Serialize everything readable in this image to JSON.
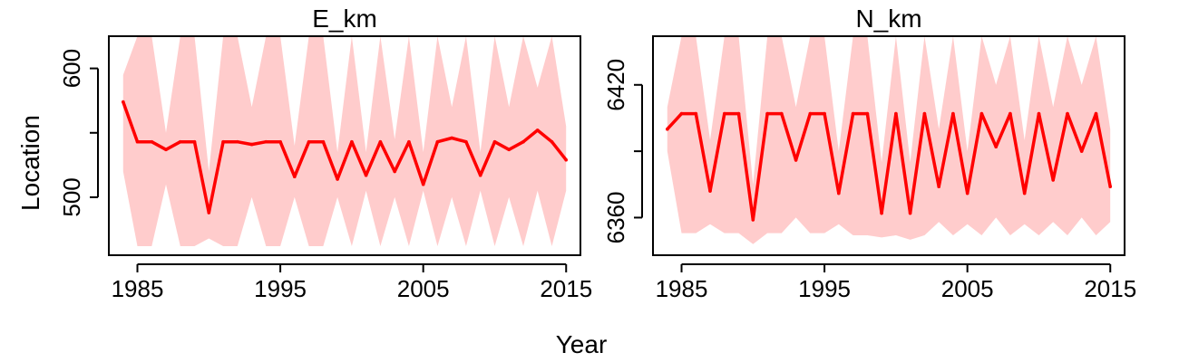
{
  "figure": {
    "xlabel": "Year",
    "ylabel": "Location"
  },
  "colors": {
    "line": "#ff0000",
    "band": "#ffcccc",
    "frame": "#000000"
  },
  "chart_data": [
    {
      "type": "line",
      "title": "E_km",
      "xlim": [
        1983,
        2016
      ],
      "ylim": [
        455,
        625
      ],
      "xticks": [
        1985,
        1995,
        2005,
        2015
      ],
      "yticks": [
        500,
        550,
        600
      ],
      "ytick_labels": [
        "500",
        "",
        "600"
      ],
      "grid": false,
      "x": [
        1984,
        1985,
        1986,
        1987,
        1988,
        1989,
        1990,
        1991,
        1992,
        1993,
        1994,
        1995,
        1996,
        1997,
        1998,
        1999,
        2000,
        2001,
        2002,
        2003,
        2004,
        2005,
        2006,
        2007,
        2008,
        2009,
        2010,
        2011,
        2012,
        2013,
        2014,
        2015
      ],
      "series": [
        {
          "values": [
            574,
            543,
            543,
            537,
            543,
            543,
            488,
            543,
            543,
            541,
            543,
            543,
            516,
            543,
            543,
            514,
            543,
            517,
            543,
            520,
            543,
            510,
            543,
            546,
            543,
            517,
            543,
            537,
            543,
            552,
            543,
            529
          ],
          "lower": [
            520,
            462,
            462,
            510,
            462,
            462,
            468,
            462,
            462,
            500,
            462,
            462,
            500,
            462,
            462,
            500,
            462,
            505,
            462,
            500,
            462,
            505,
            462,
            500,
            462,
            505,
            462,
            500,
            462,
            505,
            462,
            505
          ],
          "upper": [
            595,
            625,
            625,
            550,
            625,
            625,
            520,
            625,
            625,
            570,
            625,
            625,
            540,
            625,
            625,
            535,
            625,
            535,
            625,
            545,
            625,
            535,
            625,
            570,
            625,
            535,
            625,
            570,
            625,
            585,
            625,
            555
          ]
        }
      ]
    },
    {
      "type": "line",
      "title": "N_km",
      "xlim": [
        1983,
        2016
      ],
      "ylim": [
        6343,
        6442
      ],
      "xticks": [
        1985,
        1995,
        2005,
        2015
      ],
      "yticks": [
        6360,
        6390,
        6420
      ],
      "ytick_labels": [
        "6360",
        "",
        "6420"
      ],
      "grid": false,
      "x": [
        1984,
        1985,
        1986,
        1987,
        1988,
        1989,
        1990,
        1991,
        1992,
        1993,
        1994,
        1995,
        1996,
        1997,
        1998,
        1999,
        2000,
        2001,
        2002,
        2003,
        2004,
        2005,
        2006,
        2007,
        2008,
        2009,
        2010,
        2011,
        2012,
        2013,
        2014,
        2015
      ],
      "series": [
        {
          "values": [
            6400,
            6407,
            6407,
            6372,
            6407,
            6407,
            6359,
            6407,
            6407,
            6386,
            6407,
            6407,
            6371,
            6407,
            6407,
            6362,
            6407,
            6362,
            6407,
            6374,
            6407,
            6371,
            6407,
            6392,
            6407,
            6371,
            6407,
            6377,
            6407,
            6390,
            6407,
            6374
          ],
          "lower": [
            6390,
            6353,
            6353,
            6357,
            6353,
            6353,
            6348,
            6353,
            6353,
            6360,
            6353,
            6353,
            6357,
            6352,
            6352,
            6351,
            6352,
            6350,
            6352,
            6358,
            6352,
            6357,
            6352,
            6360,
            6352,
            6357,
            6352,
            6358,
            6352,
            6360,
            6352,
            6358
          ],
          "upper": [
            6410,
            6442,
            6442,
            6395,
            6442,
            6442,
            6375,
            6442,
            6442,
            6410,
            6442,
            6442,
            6390,
            6442,
            6442,
            6385,
            6442,
            6385,
            6442,
            6400,
            6442,
            6390,
            6442,
            6420,
            6442,
            6395,
            6442,
            6410,
            6442,
            6420,
            6442,
            6400
          ]
        }
      ]
    }
  ]
}
